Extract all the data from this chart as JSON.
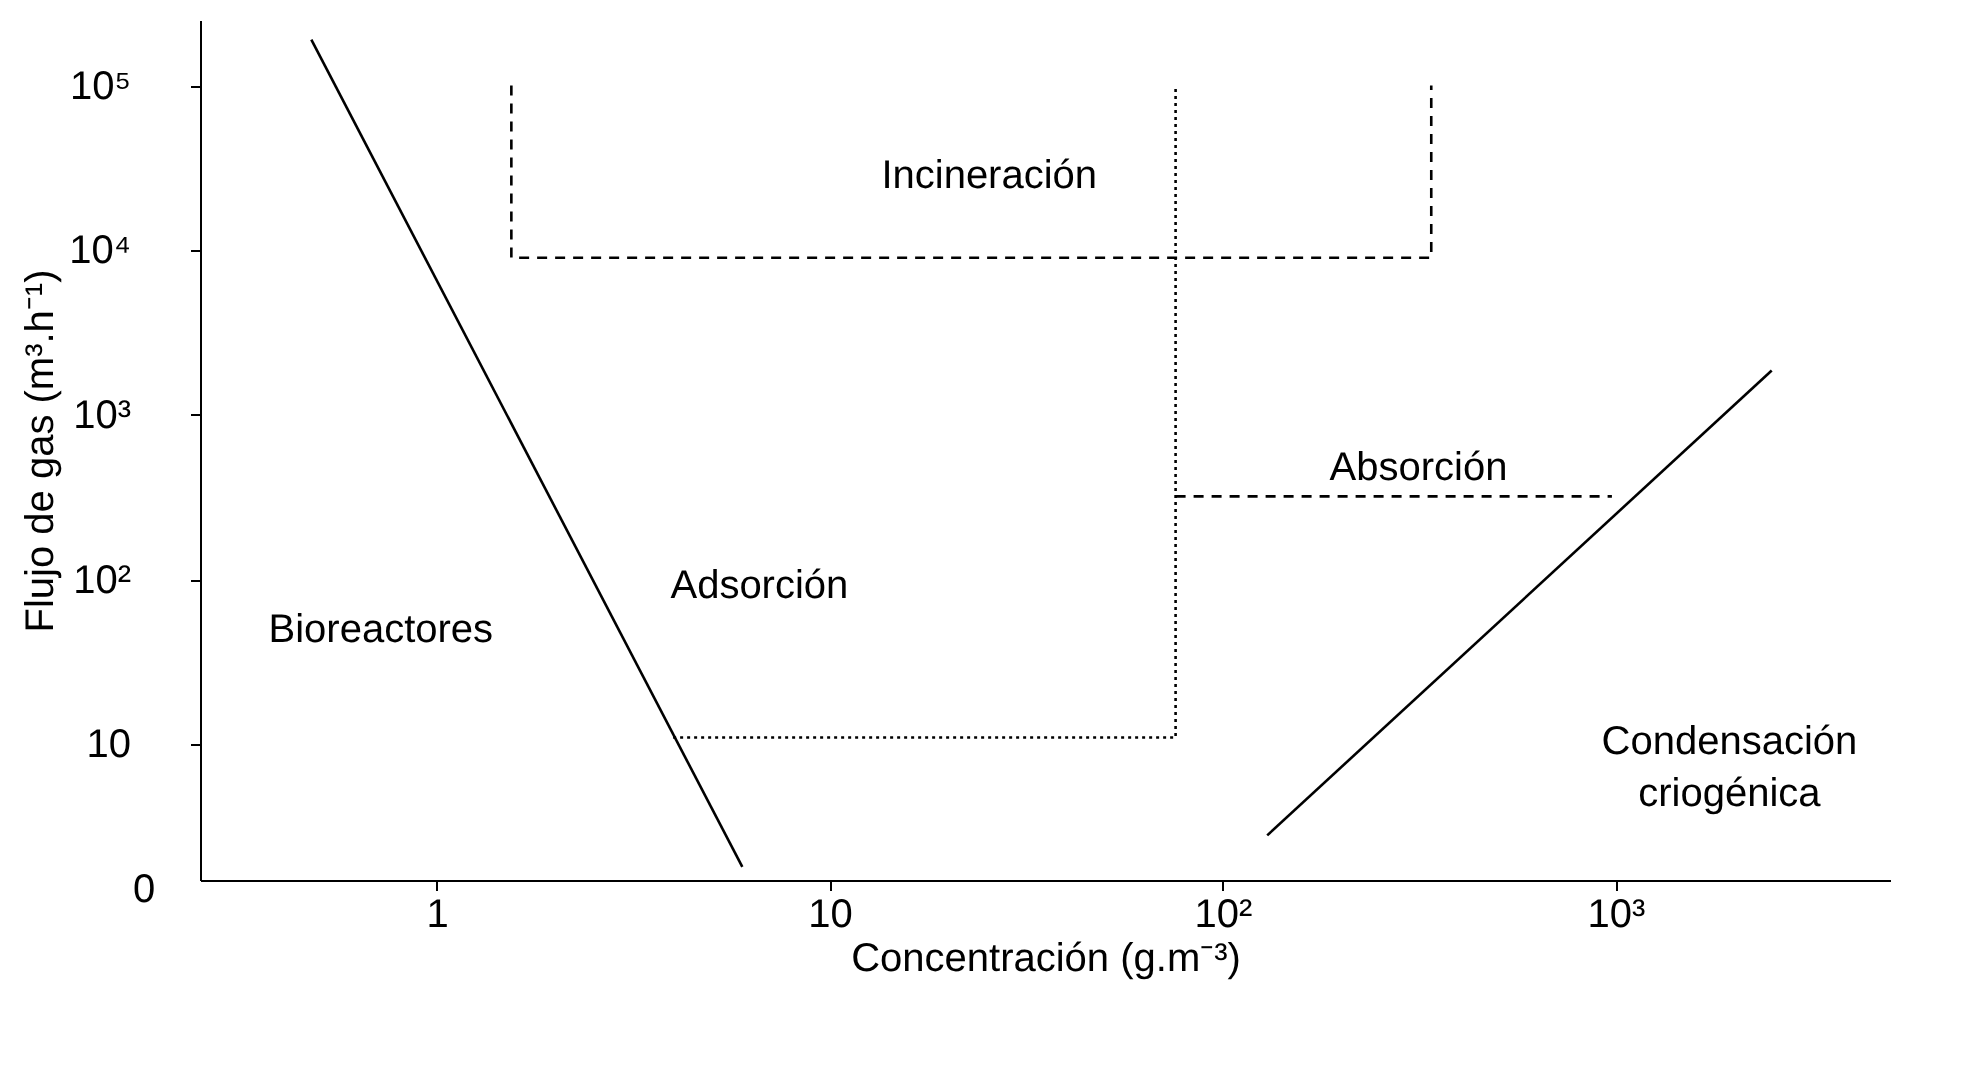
{
  "chart_data": {
    "type": "line",
    "xlabel": "Concentración (g.m⁻³)",
    "ylabel": "Flujo de gas (m³.h⁻¹)",
    "log": "xy",
    "grid": false,
    "marker": "none",
    "xlim": [
      0.25,
      5000
    ],
    "ylim": [
      1.5,
      250000
    ],
    "xticks": [
      1,
      10,
      {
        "value": 100,
        "label": "10²"
      },
      {
        "value": 1000,
        "label": "10³"
      }
    ],
    "yticks": [
      10,
      {
        "value": 100,
        "label": "10²"
      },
      {
        "value": 1000,
        "label": "10³"
      },
      {
        "value": 10000,
        "label": "10⁴"
      },
      {
        "value": 100000,
        "label": "10⁵"
      }
    ],
    "series": [
      {
        "color": "#000000",
        "line_style": "solid",
        "x": [
          0.48,
          6.0
        ],
        "values": [
          190000,
          1.8
        ]
      },
      {
        "color": "#000000",
        "line_style": "dashed",
        "x": [
          1.55,
          1.55,
          340,
          340
        ],
        "values": [
          100000,
          9000,
          9000,
          100000
        ]
      },
      {
        "color": "#000000",
        "line_style": "dotted",
        "x": [
          4.0,
          76,
          76
        ],
        "values": [
          11,
          11,
          100000
        ]
      },
      {
        "color": "#000000",
        "line_style": "dashed",
        "x": [
          76,
          980
        ],
        "values": [
          320,
          320
        ]
      },
      {
        "color": "#000000",
        "line_style": "solid",
        "x": [
          130,
          2500
        ],
        "values": [
          2.8,
          1860
        ]
      }
    ],
    "annotations": [
      "Incineración",
      "Absorción",
      "Adsorción",
      "Bioreactores",
      "Condensación\ncriogénica",
      "0"
    ]
  }
}
